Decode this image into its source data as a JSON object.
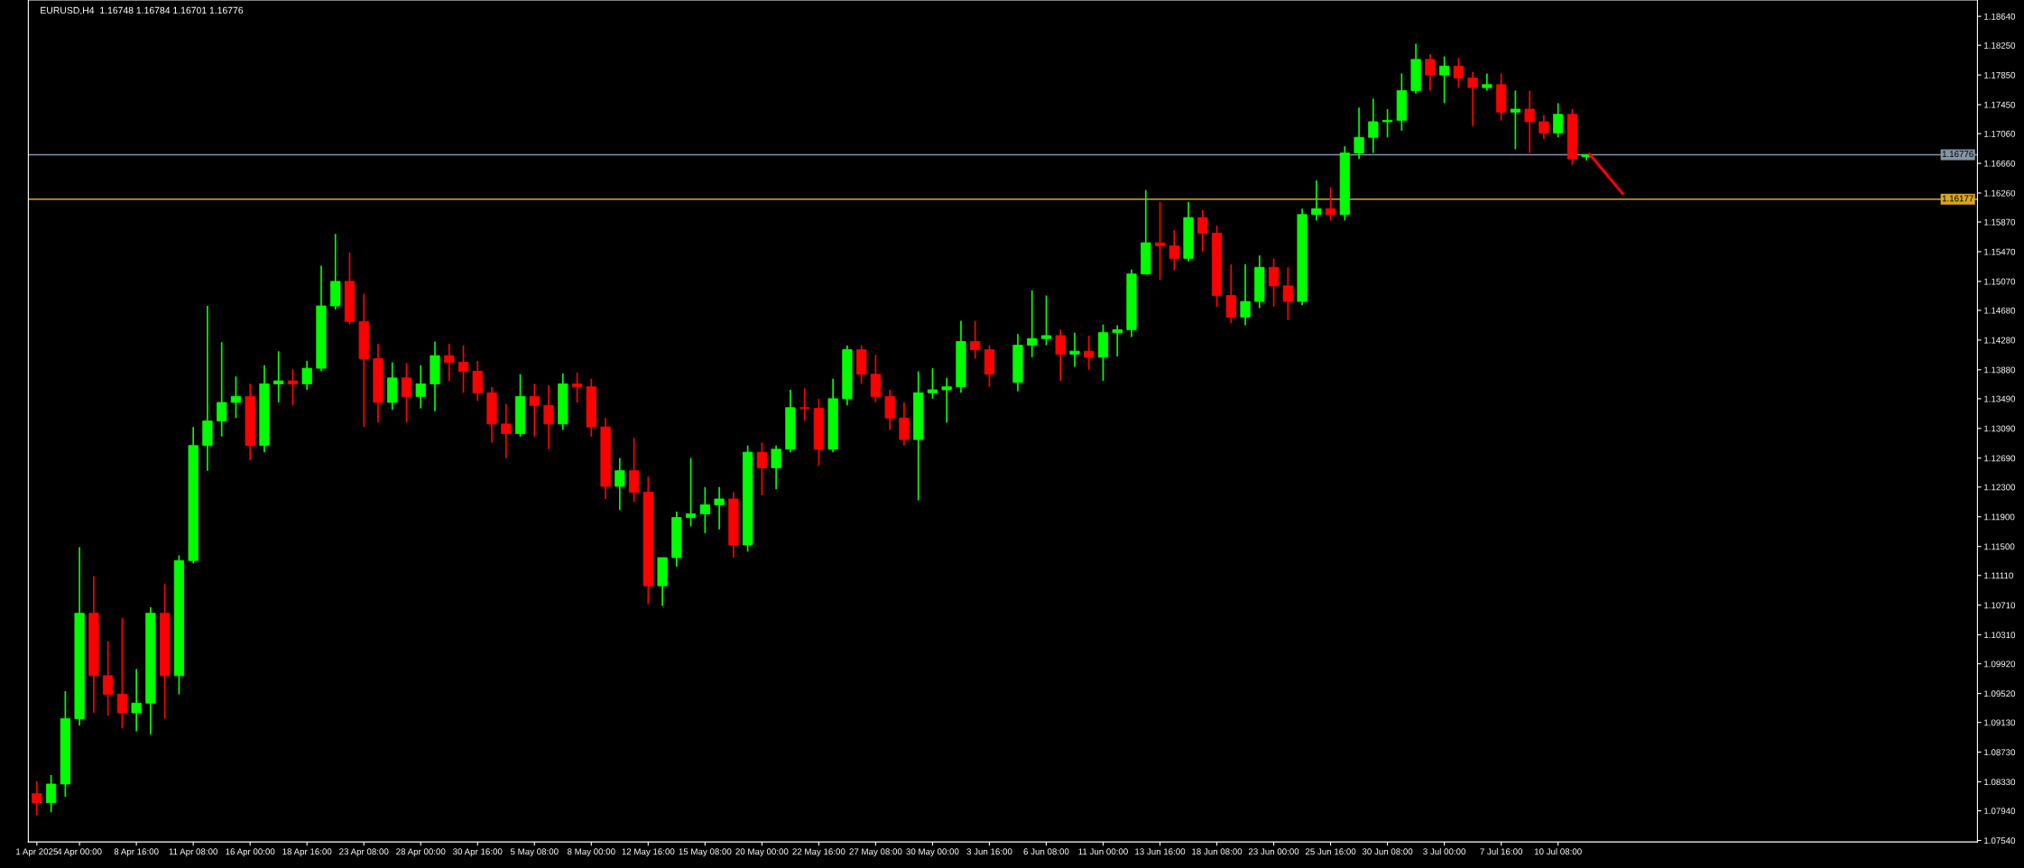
{
  "chart_data": {
    "type": "candlestick",
    "title": "EURUSD,H4  1.16748 1.16784 1.16701 1.16776",
    "categories": [
      "1 Apr 2025",
      null,
      null,
      "4 Apr 00:00",
      null,
      null,
      null,
      "8 Apr 16:00",
      null,
      null,
      null,
      "11 Apr 08:00",
      null,
      null,
      null,
      "16 Apr 00:00",
      null,
      null,
      null,
      "18 Apr 16:00",
      null,
      null,
      null,
      "23 Apr 08:00",
      null,
      null,
      null,
      "28 Apr 00:00",
      null,
      null,
      null,
      "30 Apr 16:00",
      null,
      null,
      null,
      "5 May 08:00",
      null,
      null,
      null,
      "8 May 00:00",
      null,
      null,
      null,
      "12 May 16:00",
      null,
      null,
      null,
      "15 May 08:00",
      null,
      null,
      null,
      "20 May 00:00",
      null,
      null,
      null,
      "22 May 16:00",
      null,
      null,
      null,
      "27 May 08:00",
      null,
      null,
      null,
      "30 May 00:00",
      null,
      null,
      null,
      "3 Jun 16:00",
      null,
      null,
      null,
      "6 Jun 08:00",
      null,
      null,
      null,
      "11 Jun 00:00",
      null,
      null,
      null,
      "13 Jun 16:00",
      null,
      null,
      null,
      "18 Jun 08:00",
      null,
      null,
      null,
      "23 Jun 00:00",
      null,
      null,
      null,
      "25 Jun 16:00",
      null,
      null,
      null,
      "30 Jun 08:00",
      null,
      null,
      null,
      "3 Jul 00:00",
      null,
      null,
      null,
      "7 Jul 16:00",
      null,
      null,
      null,
      "10 Jul 08:00",
      null,
      null,
      null,
      null,
      null,
      null,
      null,
      null,
      null,
      null,
      null,
      null,
      null,
      null,
      null,
      null,
      null,
      null,
      null,
      null,
      null,
      null,
      null,
      null,
      null,
      null,
      null,
      null,
      null
    ],
    "ohlc": [
      [
        1.0817,
        1.0834,
        1.0788,
        1.0805
      ],
      [
        1.0805,
        1.0842,
        1.0792,
        1.083
      ],
      [
        1.083,
        1.0955,
        1.0813,
        1.0918
      ],
      [
        1.0918,
        1.1149,
        1.0909,
        1.106
      ],
      [
        1.106,
        1.111,
        1.0926,
        1.0976
      ],
      [
        1.0976,
        1.1022,
        1.0922,
        1.0951
      ],
      [
        1.0951,
        1.1054,
        1.0905,
        1.0926
      ],
      [
        1.0926,
        1.0985,
        1.0901,
        1.0939
      ],
      [
        1.0939,
        1.1068,
        1.0897,
        1.106
      ],
      [
        1.106,
        1.11,
        1.0918,
        1.0976
      ],
      [
        1.0976,
        1.1138,
        1.0951,
        1.1131
      ],
      [
        1.1131,
        1.1311,
        1.1127,
        1.1286
      ],
      [
        1.1286,
        1.1474,
        1.1252,
        1.1319
      ],
      [
        1.1319,
        1.1425,
        1.1298,
        1.1344
      ],
      [
        1.1344,
        1.1379,
        1.1323,
        1.1352
      ],
      [
        1.1352,
        1.1369,
        1.1266,
        1.1286
      ],
      [
        1.1286,
        1.1394,
        1.1277,
        1.1369
      ],
      [
        1.1369,
        1.1413,
        1.1344,
        1.1373
      ],
      [
        1.1373,
        1.1389,
        1.134,
        1.1369
      ],
      [
        1.1369,
        1.14,
        1.1361,
        1.139
      ],
      [
        1.139,
        1.1528,
        1.1386,
        1.1474
      ],
      [
        1.1474,
        1.1571,
        1.1469,
        1.1507
      ],
      [
        1.1507,
        1.1546,
        1.1449,
        1.1453
      ],
      [
        1.1453,
        1.149,
        1.1311,
        1.1403
      ],
      [
        1.1403,
        1.1423,
        1.1317,
        1.1344
      ],
      [
        1.1344,
        1.1398,
        1.1334,
        1.1377
      ],
      [
        1.1377,
        1.1397,
        1.1317,
        1.1352
      ],
      [
        1.1352,
        1.1394,
        1.1336,
        1.1369
      ],
      [
        1.1369,
        1.1426,
        1.1332,
        1.1407
      ],
      [
        1.1407,
        1.1423,
        1.1373,
        1.1398
      ],
      [
        1.1398,
        1.1421,
        1.1357,
        1.1386
      ],
      [
        1.1386,
        1.14,
        1.1346,
        1.1357
      ],
      [
        1.1357,
        1.1365,
        1.129,
        1.1315
      ],
      [
        1.1315,
        1.1342,
        1.1269,
        1.1302
      ],
      [
        1.1302,
        1.1382,
        1.1298,
        1.1352
      ],
      [
        1.1352,
        1.1369,
        1.1298,
        1.134
      ],
      [
        1.134,
        1.1367,
        1.1281,
        1.1315
      ],
      [
        1.1315,
        1.1383,
        1.1307,
        1.1369
      ],
      [
        1.1369,
        1.1384,
        1.1344,
        1.1365
      ],
      [
        1.1365,
        1.1376,
        1.1298,
        1.1311
      ],
      [
        1.1311,
        1.1323,
        1.1214,
        1.1231
      ],
      [
        1.1231,
        1.1269,
        1.1199,
        1.1252
      ],
      [
        1.1252,
        1.1296,
        1.121,
        1.1223
      ],
      [
        1.1223,
        1.1244,
        1.1072,
        1.1097
      ],
      [
        1.1097,
        1.1135,
        1.107,
        1.1135
      ],
      [
        1.1135,
        1.1197,
        1.1123,
        1.1189
      ],
      [
        1.1189,
        1.1269,
        1.1177,
        1.1194
      ],
      [
        1.1194,
        1.123,
        1.1168,
        1.1206
      ],
      [
        1.1206,
        1.123,
        1.1173,
        1.1214
      ],
      [
        1.1214,
        1.1223,
        1.1135,
        1.1152
      ],
      [
        1.1152,
        1.1286,
        1.1143,
        1.1277
      ],
      [
        1.1277,
        1.129,
        1.1219,
        1.1256
      ],
      [
        1.1256,
        1.1286,
        1.1227,
        1.1281
      ],
      [
        1.1281,
        1.1361,
        1.1277,
        1.1337
      ],
      [
        1.1337,
        1.1363,
        1.1319,
        1.1336
      ],
      [
        1.1336,
        1.1349,
        1.1259,
        1.1281
      ],
      [
        1.1281,
        1.1376,
        1.1277,
        1.1349
      ],
      [
        1.1349,
        1.1421,
        1.134,
        1.1415
      ],
      [
        1.1415,
        1.1421,
        1.1369,
        1.1382
      ],
      [
        1.1382,
        1.1408,
        1.1344,
        1.1352
      ],
      [
        1.1352,
        1.1361,
        1.1307,
        1.1323
      ],
      [
        1.1323,
        1.1344,
        1.1286,
        1.1294
      ],
      [
        1.1294,
        1.1386,
        1.1212,
        1.1357
      ],
      [
        1.1357,
        1.139,
        1.1349,
        1.1361
      ],
      [
        1.1361,
        1.1377,
        1.1317,
        1.1365
      ],
      [
        1.1365,
        1.1454,
        1.1357,
        1.1426
      ],
      [
        1.1426,
        1.1454,
        1.1403,
        1.1415
      ],
      [
        1.1415,
        1.1421,
        1.1365,
        1.1382
      ],
      null,
      [
        1.1371,
        1.1436,
        1.1359,
        1.1421
      ],
      [
        1.1421,
        1.1495,
        1.1405,
        1.143
      ],
      [
        1.143,
        1.1488,
        1.1421,
        1.1434
      ],
      [
        1.1434,
        1.1442,
        1.1373,
        1.1409
      ],
      [
        1.1409,
        1.1438,
        1.1392,
        1.1413
      ],
      [
        1.1413,
        1.1434,
        1.1388,
        1.1405
      ],
      [
        1.1405,
        1.1449,
        1.1373,
        1.1438
      ],
      [
        1.1438,
        1.1448,
        1.1406,
        1.1442
      ],
      [
        1.1442,
        1.1523,
        1.1432,
        1.1517
      ],
      [
        1.1517,
        1.163,
        1.1517,
        1.1559
      ],
      [
        1.1559,
        1.1614,
        1.1509,
        1.1555
      ],
      [
        1.1555,
        1.1576,
        1.1522,
        1.1538
      ],
      [
        1.1538,
        1.1614,
        1.1534,
        1.1593
      ],
      [
        1.1593,
        1.1603,
        1.1547,
        1.1572
      ],
      [
        1.1572,
        1.1582,
        1.1473,
        1.1488
      ],
      [
        1.1488,
        1.153,
        1.1451,
        1.1459
      ],
      [
        1.1459,
        1.153,
        1.1448,
        1.148
      ],
      [
        1.148,
        1.1542,
        1.1471,
        1.1526
      ],
      [
        1.1526,
        1.1538,
        1.1473,
        1.1501
      ],
      [
        1.1501,
        1.1526,
        1.1455,
        1.148
      ],
      [
        1.148,
        1.1605,
        1.1475,
        1.1597
      ],
      [
        1.1597,
        1.1643,
        1.1589,
        1.1605
      ],
      [
        1.1605,
        1.1634,
        1.1589,
        1.1597
      ],
      [
        1.1597,
        1.1689,
        1.1589,
        1.168
      ],
      [
        1.168,
        1.1741,
        1.1672,
        1.1701
      ],
      [
        1.1701,
        1.1753,
        1.168,
        1.1722
      ],
      [
        1.1722,
        1.1739,
        1.1701,
        1.1724
      ],
      [
        1.1724,
        1.1787,
        1.171,
        1.1764
      ],
      [
        1.1764,
        1.1827,
        1.176,
        1.1806
      ],
      [
        1.1806,
        1.1813,
        1.1764,
        1.1785
      ],
      [
        1.1785,
        1.181,
        1.1747,
        1.1797
      ],
      [
        1.1797,
        1.1808,
        1.1768,
        1.1781
      ],
      [
        1.1781,
        1.1789,
        1.1716,
        1.1768
      ],
      [
        1.1768,
        1.1787,
        1.1764,
        1.1772
      ],
      [
        1.1772,
        1.1787,
        1.1724,
        1.1735
      ],
      [
        1.1735,
        1.1764,
        1.1685,
        1.1739
      ],
      [
        1.1739,
        1.1764,
        1.168,
        1.1722
      ],
      [
        1.1722,
        1.1731,
        1.1699,
        1.1707
      ],
      [
        1.1707,
        1.1747,
        1.1701,
        1.1732
      ],
      [
        1.1732,
        1.1739,
        1.1664,
        1.1672
      ],
      [
        1.16748,
        1.16784,
        1.16701,
        1.16776
      ],
      null,
      null,
      null,
      null,
      null,
      null,
      null,
      null,
      null,
      null,
      null,
      null,
      null,
      null,
      null,
      null,
      null,
      null,
      null,
      null,
      null,
      null,
      null,
      null,
      null,
      null,
      null
    ],
    "colors": [
      "#ff0000",
      "#00ff00",
      "#00ff00",
      "#00ff00",
      "#ff0000",
      "#ff0000",
      "#ff0000",
      "#00ff00",
      "#00ff00",
      "#ff0000",
      "#00ff00",
      "#00ff00",
      "#00ff00",
      "#00ff00",
      "#00ff00",
      "#ff0000",
      "#00ff00",
      "#00ff00",
      "#ff0000",
      "#00ff00",
      "#00ff00",
      "#00ff00",
      "#ff0000",
      "#ff0000",
      "#ff0000",
      "#00ff00",
      "#ff0000",
      "#00ff00",
      "#00ff00",
      "#ff0000",
      "#ff0000",
      "#ff0000",
      "#ff0000",
      "#ff0000",
      "#00ff00",
      "#ff0000",
      "#ff0000",
      "#00ff00",
      "#ff0000",
      "#ff0000",
      "#ff0000",
      "#00ff00",
      "#ff0000",
      "#ff0000",
      "#00ff00",
      "#00ff00",
      "#00ff00",
      "#00ff00",
      "#00ff00",
      "#ff0000",
      "#00ff00",
      "#ff0000",
      "#00ff00",
      "#00ff00",
      "#ff0000",
      "#ff0000",
      "#00ff00",
      "#00ff00",
      "#ff0000",
      "#ff0000",
      "#ff0000",
      "#ff0000",
      "#00ff00",
      "#00ff00",
      "#00ff00",
      "#00ff00",
      "#ff0000",
      "#ff0000",
      null,
      "#00ff00",
      "#00ff00",
      "#00ff00",
      "#ff0000",
      "#00ff00",
      "#ff0000",
      "#00ff00",
      "#00ff00",
      "#00ff00",
      "#00ff00",
      "#ff0000",
      "#ff0000",
      "#00ff00",
      "#ff0000",
      "#ff0000",
      "#ff0000",
      "#00ff00",
      "#00ff00",
      "#ff0000",
      "#ff0000",
      "#00ff00",
      "#00ff00",
      "#ff0000",
      "#00ff00",
      "#00ff00",
      "#00ff00",
      "#00ff00",
      "#00ff00",
      "#00ff00",
      "#ff0000",
      "#00ff00",
      "#ff0000",
      "#ff0000",
      "#00ff00",
      "#ff0000",
      "#00ff00",
      "#ff0000",
      "#ff0000",
      "#00ff00",
      "#ff0000",
      "#00ff00",
      null,
      null,
      null,
      null,
      null,
      null,
      null,
      null,
      null,
      null,
      null,
      null,
      null,
      null,
      null,
      null,
      null,
      null,
      null,
      null,
      null,
      null,
      null,
      null,
      null,
      null,
      null
    ],
    "ylim": [
      1.0752,
      1.1886
    ],
    "yticks": [
      {
        "value": 1.1864,
        "label": "1.18640"
      },
      {
        "value": 1.1825,
        "label": "1.18250"
      },
      {
        "value": 1.1785,
        "label": "1.17850"
      },
      {
        "value": 1.1745,
        "label": "1.17450"
      },
      {
        "value": 1.1706,
        "label": "1.17060"
      },
      {
        "value": 1.1666,
        "label": "1.16660"
      },
      {
        "value": 1.1626,
        "label": "1.16260"
      },
      {
        "value": 1.1587,
        "label": "1.15870"
      },
      {
        "value": 1.1547,
        "label": "1.15470"
      },
      {
        "value": 1.1507,
        "label": "1.15070"
      },
      {
        "value": 1.1468,
        "label": "1.14680"
      },
      {
        "value": 1.1428,
        "label": "1.14280"
      },
      {
        "value": 1.1388,
        "label": "1.13880"
      },
      {
        "value": 1.1349,
        "label": "1.13490"
      },
      {
        "value": 1.1309,
        "label": "1.13090"
      },
      {
        "value": 1.1269,
        "label": "1.12690"
      },
      {
        "value": 1.123,
        "label": "1.12300"
      },
      {
        "value": 1.119,
        "label": "1.11900"
      },
      {
        "value": 1.115,
        "label": "1.11500"
      },
      {
        "value": 1.1111,
        "label": "1.11110"
      },
      {
        "value": 1.1071,
        "label": "1.10710"
      },
      {
        "value": 1.1031,
        "label": "1.10310"
      },
      {
        "value": 1.0992,
        "label": "1.09920"
      },
      {
        "value": 1.0952,
        "label": "1.09520"
      },
      {
        "value": 1.0913,
        "label": "1.09130"
      },
      {
        "value": 1.0873,
        "label": "1.08730"
      },
      {
        "value": 1.0833,
        "label": "1.08330"
      },
      {
        "value": 1.0794,
        "label": "1.07940"
      },
      {
        "value": 1.0754,
        "label": "1.07540"
      }
    ],
    "ref_lines": [
      {
        "axis": "y",
        "value": 1.16776,
        "label": "1.16776",
        "color": "#8595a5"
      },
      {
        "axis": "y",
        "value": 1.16177,
        "label": "1.16177",
        "color": "#daa520"
      }
    ],
    "grid": false
  }
}
